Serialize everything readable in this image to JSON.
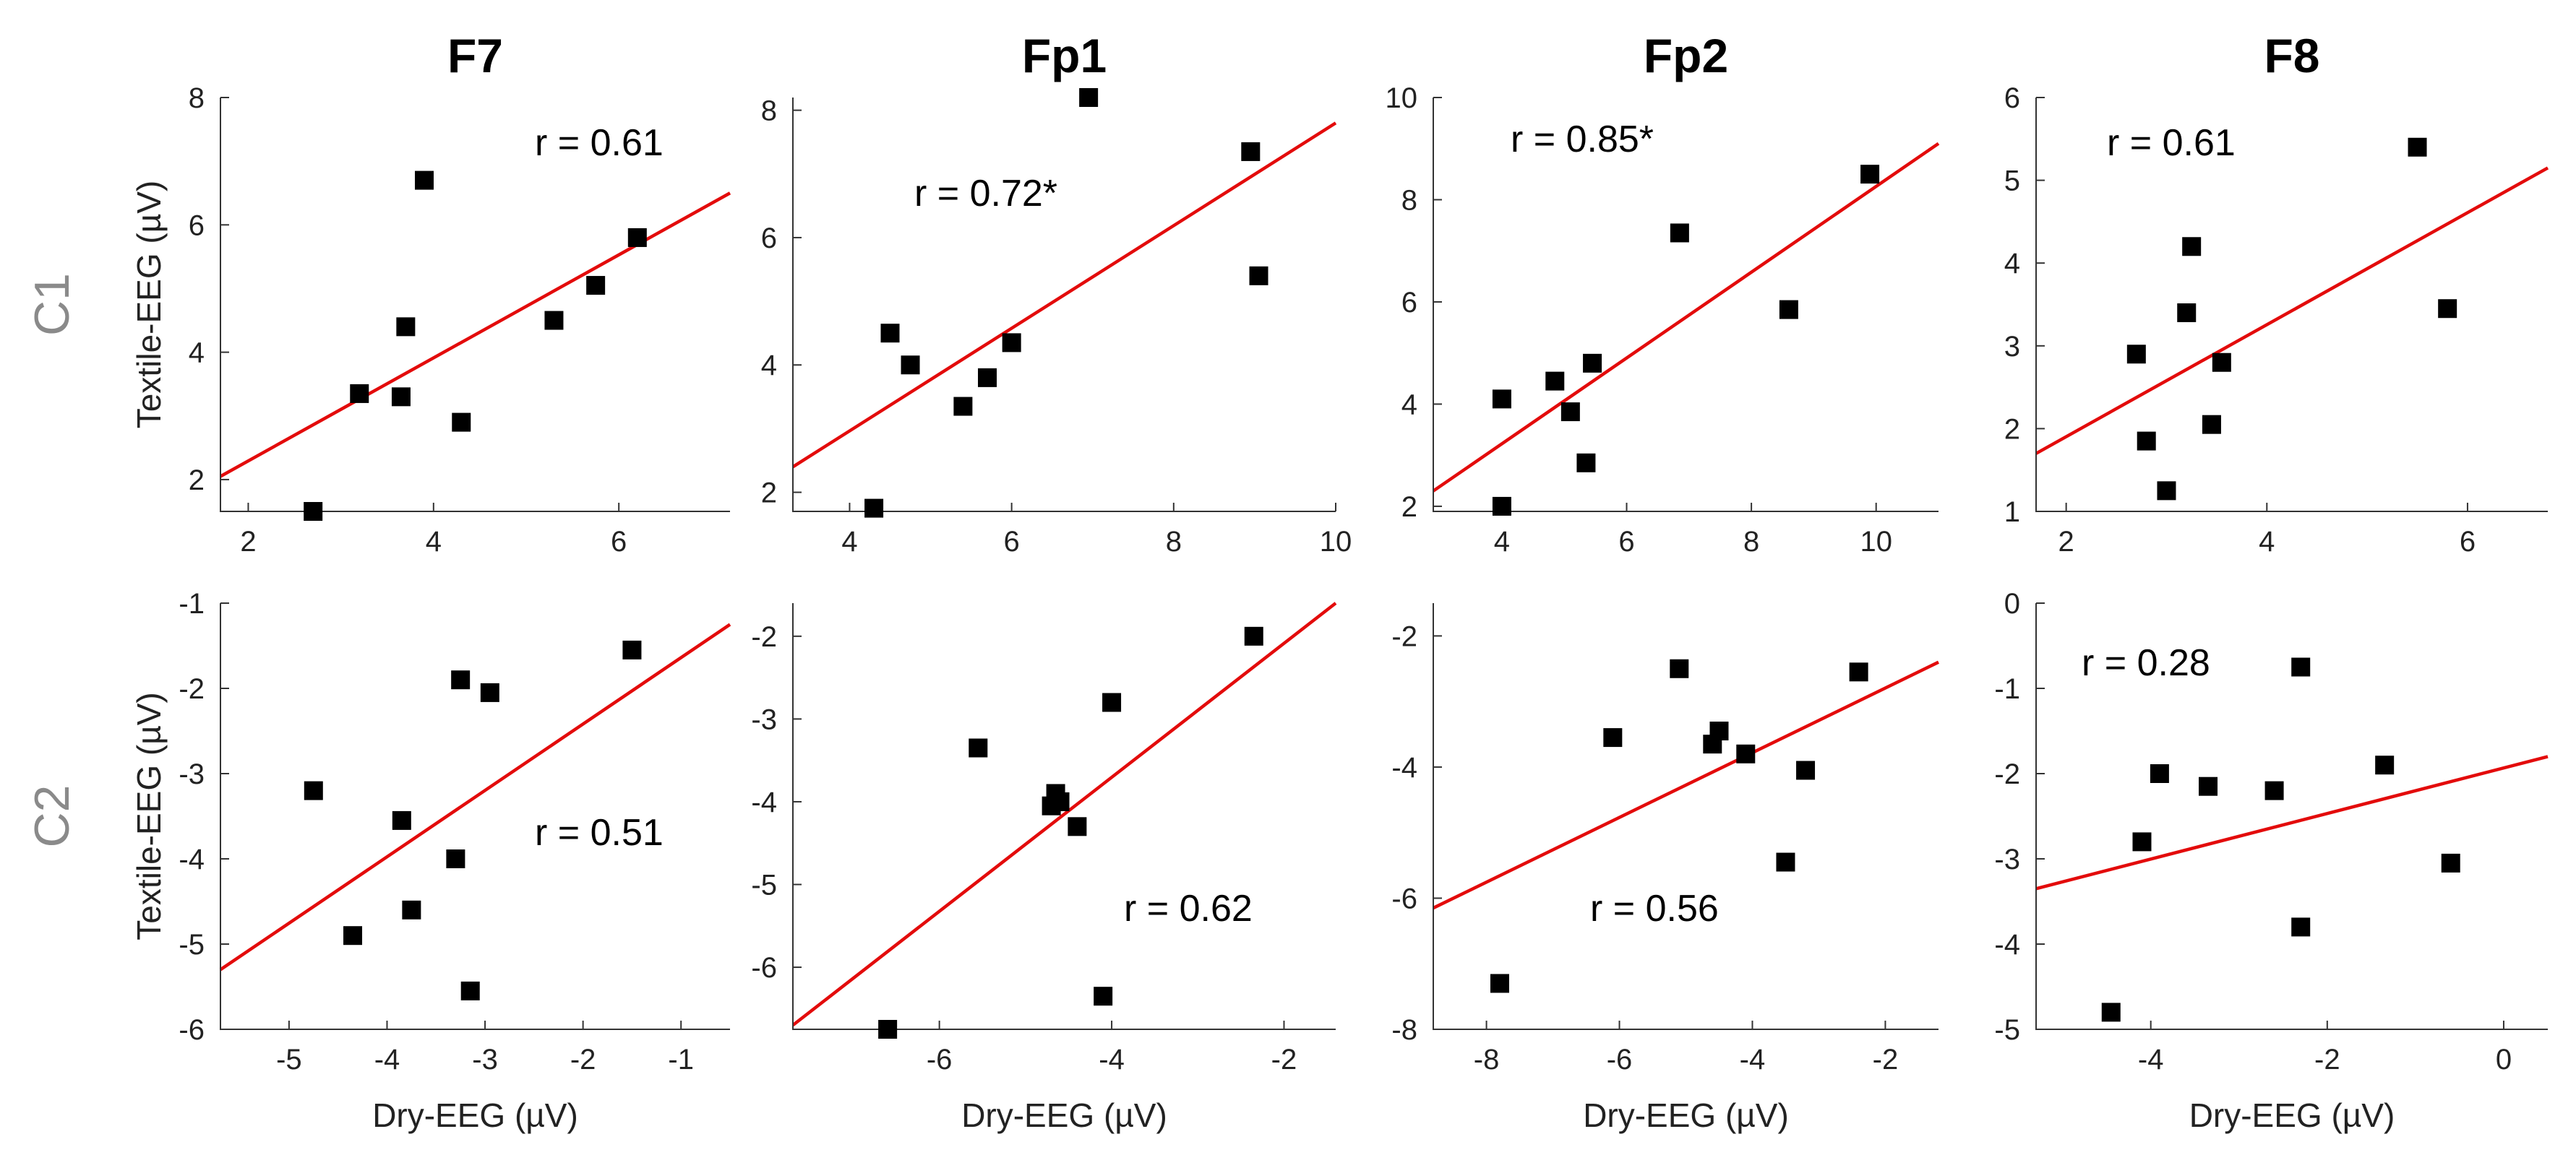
{
  "chart_data": [
    {
      "type": "scatter",
      "title": "F7",
      "row": "C1",
      "xlabel": "",
      "ylabel": "Textile-EEG (µV)",
      "r_label": "r = 0.61",
      "xlim": [
        1.7,
        7.2
      ],
      "ylim": [
        1.5,
        8
      ],
      "xticks": [
        2,
        4,
        6
      ],
      "yticks": [
        2,
        4,
        6,
        8
      ],
      "x": [
        2.7,
        3.2,
        3.65,
        3.7,
        3.9,
        4.3,
        5.3,
        5.75,
        6.2
      ],
      "y": [
        1.5,
        3.35,
        3.3,
        4.4,
        6.7,
        2.9,
        4.5,
        5.05,
        5.8
      ],
      "fit": [
        1.7,
        2.05,
        7.2,
        6.5
      ]
    },
    {
      "type": "scatter",
      "title": "Fp1",
      "row": "C1",
      "xlabel": "",
      "ylabel": "",
      "r_label": "r = 0.72*",
      "xlim": [
        3.3,
        10
      ],
      "ylim": [
        1.7,
        8.2
      ],
      "xticks": [
        4,
        6,
        8,
        10
      ],
      "yticks": [
        2,
        4,
        6,
        8
      ],
      "x": [
        4.3,
        4.5,
        4.75,
        5.4,
        5.7,
        6.0,
        6.95,
        8.95,
        9.05
      ],
      "y": [
        1.75,
        4.5,
        4.0,
        3.35,
        3.8,
        4.35,
        8.2,
        7.35,
        5.4
      ],
      "fit": [
        3.3,
        2.4,
        10,
        7.8
      ]
    },
    {
      "type": "scatter",
      "title": "Fp2",
      "row": "C1",
      "xlabel": "",
      "ylabel": "",
      "r_label": "r = 0.85*",
      "xlim": [
        2.9,
        11
      ],
      "ylim": [
        1.9,
        10
      ],
      "xticks": [
        4,
        6,
        8,
        10
      ],
      "yticks": [
        2,
        4,
        6,
        8,
        10
      ],
      "x": [
        4.0,
        4.0,
        4.85,
        5.1,
        5.35,
        5.45,
        6.85,
        8.6,
        9.9
      ],
      "y": [
        2.0,
        4.1,
        4.45,
        3.85,
        2.85,
        4.8,
        7.35,
        5.85,
        8.5
      ],
      "fit": [
        2.9,
        2.3,
        11,
        9.1
      ]
    },
    {
      "type": "scatter",
      "title": "F8",
      "row": "C1",
      "xlabel": "",
      "ylabel": "",
      "r_label": "r = 0.61",
      "xlim": [
        1.7,
        6.8
      ],
      "ylim": [
        1,
        6
      ],
      "xticks": [
        2,
        4,
        6
      ],
      "yticks": [
        1,
        2,
        3,
        4,
        5,
        6
      ],
      "x": [
        2.7,
        2.8,
        3.0,
        3.2,
        3.25,
        3.45,
        3.55,
        5.5,
        5.8
      ],
      "y": [
        2.9,
        1.85,
        1.25,
        3.4,
        4.2,
        2.05,
        2.8,
        5.4,
        3.45
      ],
      "fit": [
        1.7,
        1.7,
        6.8,
        5.15
      ]
    },
    {
      "type": "scatter",
      "title": "",
      "row": "C2",
      "xlabel": "Dry-EEG (µV)",
      "ylabel": "Textile-EEG (µV)",
      "r_label": "r = 0.51",
      "xlim": [
        -5.7,
        -0.5
      ],
      "ylim": [
        -6,
        -1
      ],
      "xticks": [
        -5,
        -4,
        -3,
        -2,
        -1
      ],
      "yticks": [
        -6,
        -5,
        -4,
        -3,
        -2,
        -1
      ],
      "x": [
        -4.75,
        -4.35,
        -3.85,
        -3.75,
        -3.3,
        -3.25,
        -3.15,
        -2.95,
        -1.5
      ],
      "y": [
        -3.2,
        -4.9,
        -3.55,
        -4.6,
        -4.0,
        -1.9,
        -5.55,
        -2.05,
        -1.55
      ],
      "fit": [
        -5.7,
        -5.3,
        -0.5,
        -1.25
      ]
    },
    {
      "type": "scatter",
      "title": "",
      "row": "C2",
      "xlabel": "Dry-EEG (µV)",
      "ylabel": "",
      "r_label": "r = 0.62",
      "xlim": [
        -7.7,
        -1.4
      ],
      "ylim": [
        -6.75,
        -1.6
      ],
      "xticks": [
        -6,
        -4,
        -2
      ],
      "yticks": [
        -6,
        -5,
        -4,
        -3,
        -2
      ],
      "x": [
        -6.6,
        -5.55,
        -4.7,
        -4.65,
        -4.6,
        -4.4,
        -4.1,
        -4.0,
        -2.35
      ],
      "y": [
        -6.75,
        -3.35,
        -4.05,
        -3.9,
        -4.0,
        -4.3,
        -6.35,
        -2.8,
        -2.0
      ],
      "fit": [
        -7.7,
        -6.7,
        -1.4,
        -1.6
      ]
    },
    {
      "type": "scatter",
      "title": "",
      "row": "C2",
      "xlabel": "Dry-EEG (µV)",
      "ylabel": "",
      "r_label": "r = 0.56",
      "xlim": [
        -8.8,
        -1.2
      ],
      "ylim": [
        -8,
        -1.5
      ],
      "xticks": [
        -8,
        -6,
        -4,
        -2
      ],
      "yticks": [
        -8,
        -6,
        -4,
        -2
      ],
      "x": [
        -7.8,
        -6.1,
        -5.1,
        -4.6,
        -4.5,
        -4.1,
        -3.5,
        -3.2,
        -2.4
      ],
      "y": [
        -7.3,
        -3.55,
        -2.5,
        -3.65,
        -3.45,
        -3.8,
        -5.45,
        -4.05,
        -2.55
      ],
      "fit": [
        -8.8,
        -6.15,
        -1.2,
        -2.4
      ]
    },
    {
      "type": "scatter",
      "title": "",
      "row": "C2",
      "xlabel": "Dry-EEG (µV)",
      "ylabel": "",
      "r_label": "r = 0.28",
      "xlim": [
        -5.3,
        0.5
      ],
      "ylim": [
        -5,
        0
      ],
      "xticks": [
        -4,
        -2,
        0
      ],
      "yticks": [
        -5,
        -4,
        -3,
        -2,
        -1,
        0
      ],
      "x": [
        -4.45,
        -4.1,
        -3.9,
        -3.35,
        -2.6,
        -2.3,
        -2.3,
        -1.35,
        -0.6
      ],
      "y": [
        -4.8,
        -2.8,
        -2.0,
        -2.15,
        -2.2,
        -0.75,
        -3.8,
        -1.9,
        -3.05
      ],
      "fit": [
        -5.3,
        -3.35,
        0.5,
        -1.8
      ]
    }
  ]
}
